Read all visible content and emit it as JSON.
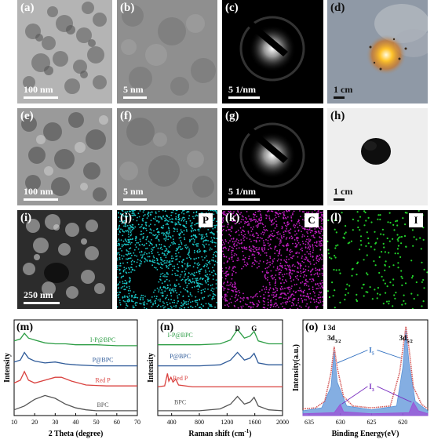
{
  "panels": {
    "a": {
      "label": "(a)",
      "scale": "100 nm"
    },
    "b": {
      "label": "(b)",
      "scale": "5 nm"
    },
    "c": {
      "label": "(c)",
      "scale": "5 1/nm"
    },
    "d": {
      "label": "(d)",
      "scale": "1 cm"
    },
    "e": {
      "label": "(e)",
      "scale": "100 nm"
    },
    "f": {
      "label": "(f)",
      "scale": "5 nm"
    },
    "g": {
      "label": "(g)",
      "scale": "5 1/nm"
    },
    "h": {
      "label": "(h)",
      "scale": "1 cm"
    },
    "i": {
      "label": "(i)",
      "scale": "250 nm"
    },
    "j": {
      "label": "(j)",
      "element": "P",
      "color": "#19c7c7"
    },
    "k": {
      "label": "(k)",
      "element": "C",
      "color": "#c21ec2"
    },
    "l": {
      "label": "(l)",
      "element": "I",
      "color": "#22d12a"
    }
  },
  "chart_data": [
    {
      "id": "m",
      "label": "(m)",
      "type": "line",
      "xlabel": "2 Theta (degree)",
      "ylabel": "Intensity",
      "xlim": [
        10,
        70
      ],
      "xticks": [
        10,
        20,
        30,
        40,
        50,
        60,
        70
      ],
      "series": [
        {
          "name": "I-P@BPC",
          "color": "#2e9e46",
          "points": [
            [
              10,
              0.78
            ],
            [
              13,
              0.8
            ],
            [
              15,
              0.86
            ],
            [
              17,
              0.81
            ],
            [
              20,
              0.79
            ],
            [
              25,
              0.76
            ],
            [
              30,
              0.75
            ],
            [
              35,
              0.75
            ],
            [
              40,
              0.74
            ],
            [
              50,
              0.74
            ],
            [
              60,
              0.73
            ],
            [
              70,
              0.73
            ]
          ]
        },
        {
          "name": "P@BPC",
          "color": "#2f5b99",
          "points": [
            [
              10,
              0.56
            ],
            [
              13,
              0.58
            ],
            [
              15,
              0.66
            ],
            [
              17,
              0.6
            ],
            [
              20,
              0.57
            ],
            [
              25,
              0.55
            ],
            [
              30,
              0.56
            ],
            [
              35,
              0.54
            ],
            [
              40,
              0.53
            ],
            [
              50,
              0.52
            ],
            [
              60,
              0.52
            ],
            [
              70,
              0.52
            ]
          ]
        },
        {
          "name": "Red P",
          "color": "#d9413e",
          "points": [
            [
              10,
              0.34
            ],
            [
              13,
              0.37
            ],
            [
              15,
              0.46
            ],
            [
              17,
              0.37
            ],
            [
              20,
              0.34
            ],
            [
              25,
              0.37
            ],
            [
              30,
              0.4
            ],
            [
              33,
              0.4
            ],
            [
              38,
              0.36
            ],
            [
              45,
              0.32
            ],
            [
              55,
              0.31
            ],
            [
              70,
              0.31
            ]
          ]
        },
        {
          "name": "BPC",
          "color": "#555555",
          "points": [
            [
              10,
              0.06
            ],
            [
              15,
              0.1
            ],
            [
              20,
              0.17
            ],
            [
              25,
              0.21
            ],
            [
              30,
              0.18
            ],
            [
              35,
              0.12
            ],
            [
              40,
              0.08
            ],
            [
              45,
              0.06
            ],
            [
              50,
              0.05
            ],
            [
              60,
              0.05
            ],
            [
              70,
              0.05
            ]
          ]
        }
      ]
    },
    {
      "id": "n",
      "label": "(n)",
      "type": "line",
      "xlabel": "Raman shift (cm",
      "xlabel_sup": "-1",
      "xlabel_end": ")",
      "ylabel": "Intensity",
      "xlim": [
        200,
        2000
      ],
      "xticks": [
        400,
        800,
        1200,
        1600,
        2000
      ],
      "peak_labels": [
        {
          "text": "D",
          "x": 1350
        },
        {
          "text": "G",
          "x": 1590
        }
      ],
      "series": [
        {
          "name": "I-P@BPC",
          "color": "#2e9e46",
          "points": [
            [
              200,
              0.74
            ],
            [
              800,
              0.74
            ],
            [
              1100,
              0.75
            ],
            [
              1250,
              0.79
            ],
            [
              1350,
              0.9
            ],
            [
              1450,
              0.81
            ],
            [
              1530,
              0.83
            ],
            [
              1590,
              0.88
            ],
            [
              1650,
              0.78
            ],
            [
              1800,
              0.75
            ],
            [
              2000,
              0.75
            ]
          ]
        },
        {
          "name": "P@BPC",
          "color": "#2f5b99",
          "points": [
            [
              200,
              0.52
            ],
            [
              800,
              0.52
            ],
            [
              1100,
              0.53
            ],
            [
              1250,
              0.58
            ],
            [
              1350,
              0.66
            ],
            [
              1450,
              0.58
            ],
            [
              1530,
              0.6
            ],
            [
              1590,
              0.65
            ],
            [
              1650,
              0.55
            ],
            [
              1800,
              0.53
            ],
            [
              2000,
              0.53
            ]
          ]
        },
        {
          "name": "Red P",
          "color": "#d9413e",
          "points": [
            [
              200,
              0.3
            ],
            [
              300,
              0.31
            ],
            [
              340,
              0.44
            ],
            [
              360,
              0.36
            ],
            [
              390,
              0.4
            ],
            [
              420,
              0.35
            ],
            [
              460,
              0.38
            ],
            [
              500,
              0.32
            ],
            [
              700,
              0.3
            ],
            [
              1000,
              0.3
            ],
            [
              1500,
              0.3
            ],
            [
              2000,
              0.3
            ]
          ]
        },
        {
          "name": "BPC",
          "color": "#555555",
          "points": [
            [
              200,
              0.05
            ],
            [
              800,
              0.05
            ],
            [
              1100,
              0.07
            ],
            [
              1250,
              0.12
            ],
            [
              1350,
              0.2
            ],
            [
              1450,
              0.12
            ],
            [
              1530,
              0.14
            ],
            [
              1590,
              0.19
            ],
            [
              1650,
              0.1
            ],
            [
              1800,
              0.06
            ],
            [
              2000,
              0.05
            ]
          ]
        }
      ]
    },
    {
      "id": "o",
      "label": "(o)",
      "type": "area",
      "title": "I 3d",
      "xlabel": "Binding Energy(eV)",
      "ylabel": "Intensity(a.u.)",
      "xlim": [
        636,
        616
      ],
      "xticks": [
        635,
        630,
        625,
        620
      ],
      "peak_labels": [
        {
          "text": "3d",
          "sub": "3/2",
          "x": 631
        },
        {
          "text": "3d",
          "sub": "5/2",
          "x": 619.5
        }
      ],
      "component_labels": [
        {
          "text": "I",
          "sub": "5",
          "color": "#2f6fc0"
        },
        {
          "text": "I",
          "sub": "3",
          "color": "#7a2fc0"
        }
      ],
      "series": [
        {
          "name": "I5",
          "color": "#5b93d8",
          "points": [
            [
              636,
              0.05
            ],
            [
              633,
              0.08
            ],
            [
              631.5,
              0.3
            ],
            [
              631,
              0.68
            ],
            [
              630.5,
              0.35
            ],
            [
              629,
              0.1
            ],
            [
              625,
              0.06
            ],
            [
              621,
              0.1
            ],
            [
              620,
              0.5
            ],
            [
              619.5,
              0.9
            ],
            [
              619,
              0.55
            ],
            [
              618,
              0.15
            ],
            [
              616,
              0.05
            ]
          ]
        },
        {
          "name": "I3",
          "color": "#9b4fd6",
          "points": [
            [
              636,
              0.02
            ],
            [
              631,
              0.03
            ],
            [
              630,
              0.12
            ],
            [
              629.5,
              0.04
            ],
            [
              625,
              0.02
            ],
            [
              619,
              0.03
            ],
            [
              618.3,
              0.14
            ],
            [
              617.5,
              0.05
            ],
            [
              616,
              0.02
            ]
          ]
        },
        {
          "name": "data",
          "color": "#d45a5a",
          "points": [
            [
              636,
              0.07
            ],
            [
              634,
              0.08
            ],
            [
              632.5,
              0.15
            ],
            [
              631.5,
              0.45
            ],
            [
              631,
              0.72
            ],
            [
              630.5,
              0.5
            ],
            [
              629.5,
              0.2
            ],
            [
              628,
              0.1
            ],
            [
              625,
              0.08
            ],
            [
              622,
              0.1
            ],
            [
              620.5,
              0.45
            ],
            [
              619.5,
              0.93
            ],
            [
              619,
              0.7
            ],
            [
              618.3,
              0.3
            ],
            [
              617,
              0.12
            ],
            [
              616,
              0.07
            ]
          ]
        }
      ]
    }
  ]
}
